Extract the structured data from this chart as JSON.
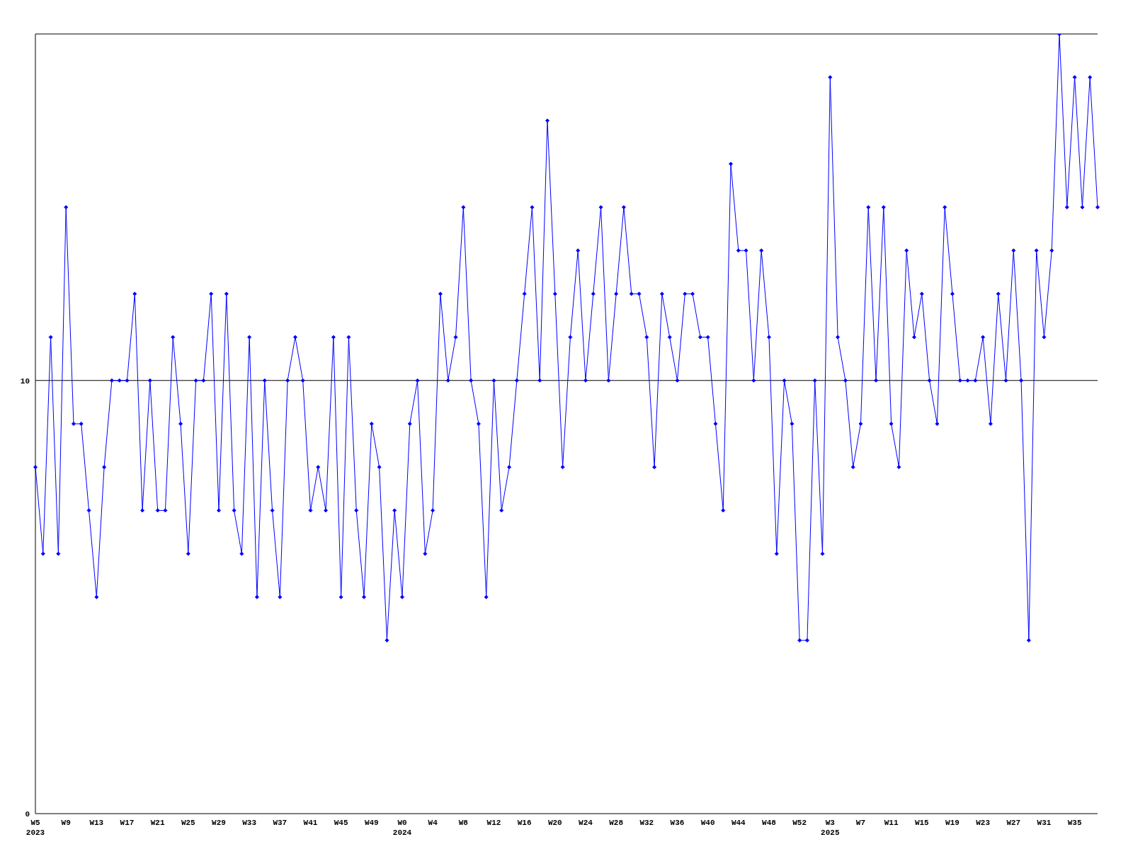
{
  "chart_data": {
    "type": "line",
    "categories": [
      "W5\n2023",
      null,
      null,
      null,
      "W9",
      null,
      null,
      null,
      "W13",
      null,
      null,
      null,
      "W17",
      null,
      null,
      null,
      "W21",
      null,
      null,
      null,
      "W25",
      null,
      null,
      null,
      "W29",
      null,
      null,
      null,
      "W33",
      null,
      null,
      null,
      "W37",
      null,
      null,
      null,
      "W41",
      null,
      null,
      null,
      "W45",
      null,
      null,
      null,
      "W49",
      null,
      null,
      null,
      "W0\n2024",
      null,
      null,
      null,
      "W4",
      null,
      null,
      null,
      "W8",
      null,
      null,
      null,
      "W12",
      null,
      null,
      null,
      "W16",
      null,
      null,
      null,
      "W20",
      null,
      null,
      null,
      "W24",
      null,
      null,
      null,
      "W28",
      null,
      null,
      null,
      "W32",
      null,
      null,
      null,
      "W36",
      null,
      null,
      null,
      "W40",
      null,
      null,
      null,
      "W44",
      null,
      null,
      null,
      "W48",
      null,
      null,
      null,
      "W52",
      null,
      null,
      null,
      "W3\n2025",
      null,
      null,
      null,
      "W7",
      null,
      null,
      null,
      "W11",
      null,
      null,
      null,
      "W15",
      null,
      null,
      null,
      "W19",
      null,
      null,
      null,
      "W23",
      null,
      null,
      null,
      "W27",
      null,
      null,
      null,
      "W31",
      null,
      null,
      null,
      "W35",
      null,
      null,
      null
    ],
    "series": [
      {
        "color": "#0000ff",
        "values": [
          8,
          6,
          11,
          6,
          14,
          9,
          9,
          7,
          5,
          8,
          10,
          10,
          10,
          12,
          7,
          10,
          7,
          7,
          11,
          9,
          6,
          10,
          10,
          12,
          7,
          12,
          7,
          6,
          11,
          5,
          10,
          7,
          5,
          10,
          11,
          10,
          7,
          8,
          7,
          11,
          5,
          11,
          7,
          5,
          9,
          8,
          4,
          7,
          5,
          9,
          10,
          6,
          7,
          12,
          10,
          11,
          14,
          10,
          9,
          5,
          10,
          7,
          8,
          10,
          12,
          14,
          10,
          16,
          12,
          8,
          11,
          13,
          10,
          12,
          14,
          10,
          12,
          14,
          12,
          12,
          11,
          8,
          12,
          11,
          10,
          12,
          12,
          11,
          11,
          9,
          7,
          15,
          13,
          13,
          10,
          13,
          11,
          6,
          10,
          9,
          4,
          4,
          10,
          6,
          17,
          11,
          10,
          8,
          9,
          14,
          10,
          14,
          9,
          8,
          13,
          11,
          12,
          10,
          9,
          14,
          12,
          10,
          10,
          10,
          11,
          9,
          12,
          10,
          13,
          10,
          4,
          13,
          11,
          13,
          18,
          14,
          17,
          14,
          17,
          14
        ]
      }
    ],
    "ylim": [
      0,
      18
    ],
    "yticks": [
      0,
      10
    ],
    "grid": "y",
    "marker": "diamond",
    "line_style": "solid"
  }
}
